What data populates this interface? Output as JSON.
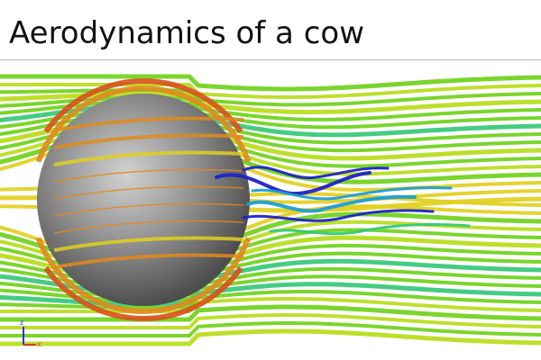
{
  "page": {
    "title": "Aerodynamics of a cow"
  },
  "simulation": {
    "object": "sphere",
    "object_color": "#8f8f8f",
    "flow_palette": [
      "#1f22c8",
      "#1b9fd6",
      "#35c878",
      "#6fd11a",
      "#b7dc1a",
      "#e2cf1f",
      "#e08a1e",
      "#d9501a"
    ]
  },
  "axis_triad": {
    "labels": [
      "z",
      "x"
    ],
    "colors": [
      "#2a35d6",
      "#d93a2a"
    ]
  }
}
